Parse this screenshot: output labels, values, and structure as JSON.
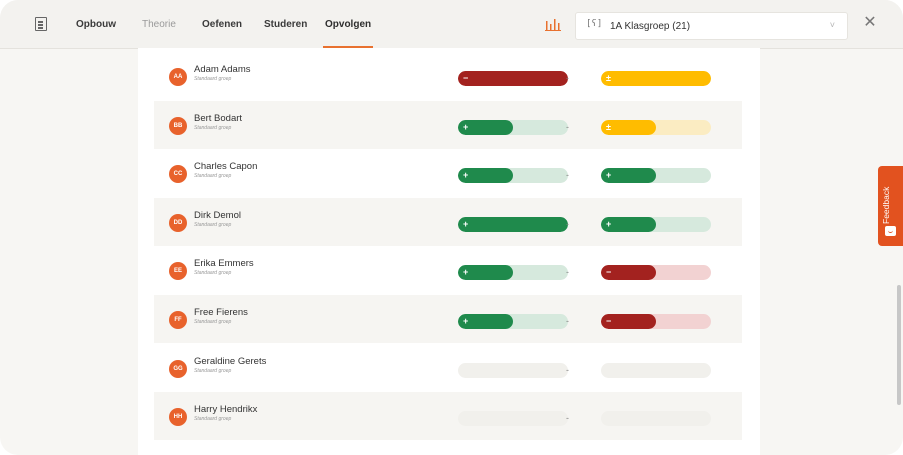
{
  "nav": {
    "tabs": [
      {
        "label": "Opbouw",
        "state": "normal"
      },
      {
        "label": "Theorie",
        "state": "inactive"
      },
      {
        "label": "Oefenen",
        "state": "normal"
      },
      {
        "label": "Studeren",
        "state": "normal"
      },
      {
        "label": "Opvolgen",
        "state": "active"
      }
    ]
  },
  "group_select": {
    "icon_text": "[ʕ]",
    "label": "1A Klasgroep (21)",
    "chevron": "˅"
  },
  "close": "✕",
  "feedback": {
    "label": "Feedback"
  },
  "colors": {
    "accent": "#e8712f",
    "green": "#1f8a4c",
    "green_track": "#d6e9dd",
    "red": "#a3221f",
    "red_track": "#f2d2d2",
    "yellow": "#ffbc00",
    "yellow_track": "#fbecc2",
    "empty_track": "#f1f0ec"
  },
  "students": [
    {
      "initials": "AA",
      "name": "Adam Adams",
      "group": "Standaard groep",
      "score1": {
        "status": "red",
        "sign": "−",
        "fill": 1.0
      },
      "separator": "-",
      "score2": {
        "status": "yellow",
        "sign": "±",
        "fill": 1.0
      }
    },
    {
      "initials": "BB",
      "name": "Bert Bodart",
      "group": "Standaard groep",
      "score1": {
        "status": "green",
        "sign": "+",
        "fill": 0.5
      },
      "separator": "-",
      "score2": {
        "status": "yellow",
        "sign": "±",
        "fill": 0.5
      }
    },
    {
      "initials": "CC",
      "name": "Charles Capon",
      "group": "Standaard groep",
      "score1": {
        "status": "green",
        "sign": "+",
        "fill": 0.5
      },
      "separator": "-",
      "score2": {
        "status": "green",
        "sign": "+",
        "fill": 0.5
      }
    },
    {
      "initials": "DD",
      "name": "Dirk Demol",
      "group": "Standaard groep",
      "score1": {
        "status": "green",
        "sign": "+",
        "fill": 1.0
      },
      "separator": "-",
      "score2": {
        "status": "green",
        "sign": "+",
        "fill": 0.5
      }
    },
    {
      "initials": "EE",
      "name": "Erika Emmers",
      "group": "Standaard groep",
      "score1": {
        "status": "green",
        "sign": "+",
        "fill": 0.5
      },
      "separator": "-",
      "score2": {
        "status": "red",
        "sign": "−",
        "fill": 0.5
      }
    },
    {
      "initials": "FF",
      "name": "Free Fierens",
      "group": "Standaard groep",
      "score1": {
        "status": "green",
        "sign": "+",
        "fill": 0.5
      },
      "separator": "-",
      "score2": {
        "status": "red",
        "sign": "−",
        "fill": 0.5
      }
    },
    {
      "initials": "GG",
      "name": "Geraldine Gerets",
      "group": "Standaard groep",
      "score1": {
        "status": "empty",
        "sign": "",
        "fill": 0
      },
      "separator": "-",
      "score2": {
        "status": "empty",
        "sign": "",
        "fill": 0
      }
    },
    {
      "initials": "HH",
      "name": "Harry Hendrikx",
      "group": "Standaard groep",
      "score1": {
        "status": "empty",
        "sign": "",
        "fill": 0
      },
      "separator": "-",
      "score2": {
        "status": "empty",
        "sign": "",
        "fill": 0
      }
    }
  ]
}
